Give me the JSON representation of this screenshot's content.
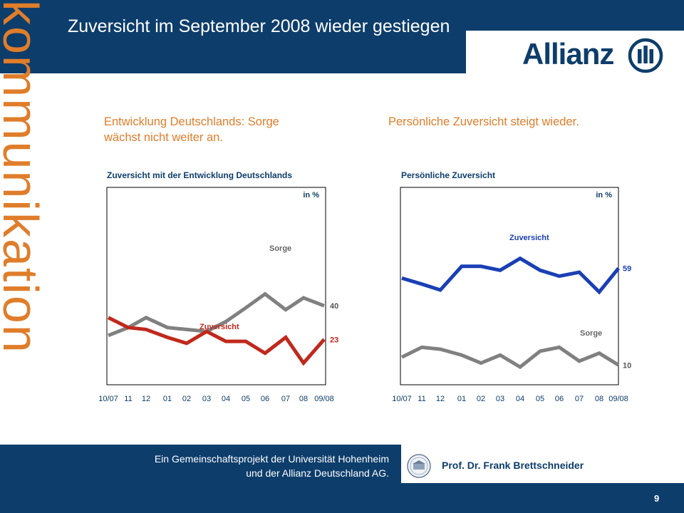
{
  "header": {
    "title": "Zuversicht im September 2008 wieder gestiegen",
    "logo_text": "Allianz",
    "vertical_word": "kommunikation"
  },
  "panels": {
    "left_subtitle": "Entwicklung Deutschlands: Sorge wächst nicht weiter an.",
    "right_subtitle": "Persönliche Zuversicht steigt wieder."
  },
  "footer": {
    "line1": "Ein Gemeinschaftsprojekt der Universität Hohenheim",
    "line2": "und der Allianz Deutschland AG.",
    "author": "Prof. Dr. Frank Brettschneider",
    "page": "9"
  },
  "colors": {
    "navy": "#0d3d6b",
    "orange": "#e07d2a",
    "red_series": "#c0281c",
    "gray_series": "#808080",
    "blue_series": "#1a3fb5"
  },
  "chart_data": [
    {
      "type": "line",
      "title": "Zuversicht mit der Entwicklung Deutschlands",
      "unit": "in %",
      "categories": [
        "10/07",
        "11",
        "12",
        "01",
        "02",
        "03",
        "04",
        "05",
        "06",
        "07",
        "08",
        "09/08"
      ],
      "ylim": [
        0,
        100
      ],
      "series": [
        {
          "name": "Sorge",
          "values": [
            25,
            29,
            34,
            29,
            28,
            27,
            32,
            39,
            46,
            38,
            44,
            40
          ],
          "end_label": "40",
          "color": "#808080"
        },
        {
          "name": "Zuversicht",
          "values": [
            34,
            29,
            28,
            24,
            21,
            27,
            22,
            22,
            16,
            24,
            11,
            23
          ],
          "end_label": "23",
          "color": "#c0281c"
        }
      ]
    },
    {
      "type": "line",
      "title": "Persönliche Zuversicht",
      "unit": "in %",
      "categories": [
        "10/07",
        "11",
        "12",
        "01",
        "02",
        "03",
        "04",
        "05",
        "06",
        "07",
        "08",
        "09/08"
      ],
      "ylim": [
        0,
        100
      ],
      "series": [
        {
          "name": "Zuversicht",
          "values": [
            54,
            51,
            48,
            60,
            60,
            58,
            64,
            58,
            55,
            57,
            47,
            59
          ],
          "end_label": "59",
          "color": "#1a3fb5"
        },
        {
          "name": "Sorge",
          "values": [
            14,
            19,
            18,
            15,
            11,
            15,
            9,
            17,
            19,
            12,
            16,
            10
          ],
          "end_label": "10",
          "color": "#808080"
        }
      ]
    }
  ]
}
